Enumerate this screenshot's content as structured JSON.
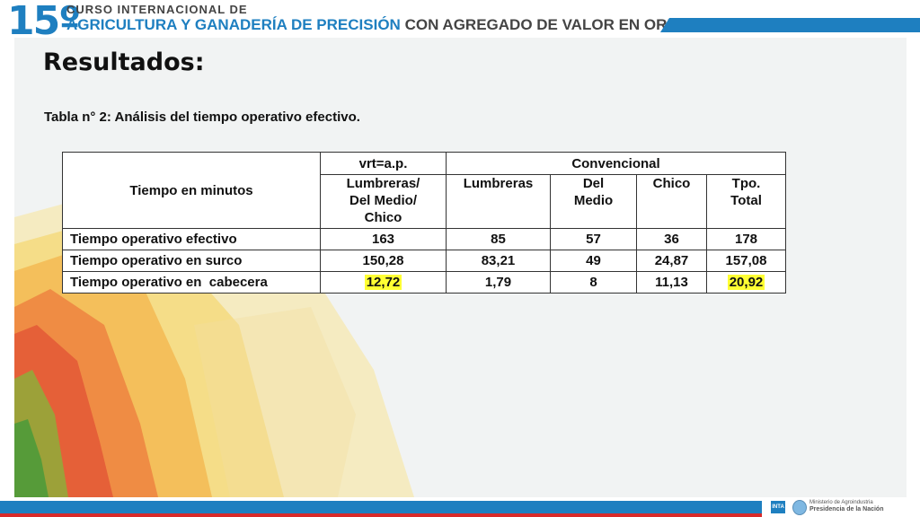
{
  "header": {
    "edition": "15º",
    "line1": "CURSO INTERNACIONAL DE",
    "line2_main": "AGRICULTURA Y GANADERÍA DE PRECISIÓN",
    "line2_tail": "CON AGREGADO DE VALOR EN ORIGEN"
  },
  "slide": {
    "title": "Resultados:",
    "subtitle": "Tabla n° 2: Análisis del tiempo operativo efectivo."
  },
  "table": {
    "row_header": "Tiempo en minutos",
    "group1": "vrt=a.p.",
    "group2": "Convencional",
    "columns": [
      "Lumbreras/\nDel Medio/\nChico",
      "Lumbreras",
      "Del\nMedio",
      "Chico",
      "Tpo.\nTotal"
    ],
    "rows": [
      {
        "label": "Tiempo operativo efectivo",
        "values": [
          "163",
          "85",
          "57",
          "36",
          "178"
        ]
      },
      {
        "label": "Tiempo operativo en surco",
        "values": [
          "150,28",
          "83,21",
          "49",
          "24,87",
          "157,08"
        ]
      },
      {
        "label": "Tiempo operativo en  cabecera",
        "values": [
          "12,72",
          "1,79",
          "8",
          "11,13",
          "20,92"
        ]
      }
    ],
    "highlight_color": "#ffff33"
  },
  "footer": {
    "inta": "INTA",
    "ministry": "Ministerio de Agroindustria",
    "presidency": "Presidencia de la Nación"
  },
  "colors": {
    "brand_blue": "#1e7fc0",
    "accent_red": "#d92a2a"
  }
}
